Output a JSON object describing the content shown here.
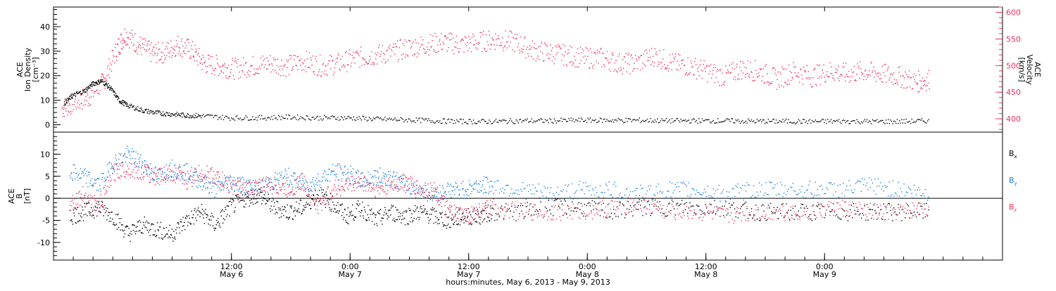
{
  "chart_data": [
    {
      "type": "scatter",
      "panel": "density-velocity",
      "left_axis_label": [
        "ACE",
        "Ion Density",
        "[cm⁻³]"
      ],
      "right_axis_label": [
        "ACE",
        "Velocity",
        "[km/s]"
      ],
      "ylim_left": [
        -3,
        48
      ],
      "yticks_left": [
        "0",
        "10",
        "20",
        "30",
        "40"
      ],
      "ylim_right": [
        375,
        610
      ],
      "yticks_right": [
        "400",
        "450",
        "500",
        "550",
        "600"
      ],
      "colors": {
        "density": "#000000",
        "velocity": "#e8325a"
      },
      "series": [
        {
          "axis": "left",
          "color": "#000000",
          "values": [
            [
              0.3,
              9
            ],
            [
              0.6,
              12
            ],
            [
              1.0,
              14
            ],
            [
              1.3,
              17
            ],
            [
              1.6,
              18
            ],
            [
              1.9,
              15
            ],
            [
              2.2,
              10
            ],
            [
              2.5,
              8
            ],
            [
              3.0,
              6
            ],
            [
              3.5,
              5
            ],
            [
              4.0,
              4.5
            ],
            [
              4.5,
              4
            ],
            [
              5.0,
              3.8
            ],
            [
              6.0,
              3
            ],
            [
              7.0,
              3
            ],
            [
              8.0,
              3.3
            ],
            [
              9.0,
              3
            ],
            [
              10.0,
              3
            ],
            [
              11.0,
              2.5
            ],
            [
              12.0,
              2.2
            ],
            [
              13.0,
              1.8
            ],
            [
              14.0,
              1.5
            ],
            [
              15.0,
              1.5
            ],
            [
              16.0,
              1.8
            ],
            [
              17.0,
              1.8
            ],
            [
              18.0,
              2.0
            ],
            [
              19.0,
              2.0
            ],
            [
              20.0,
              2.0
            ],
            [
              21.0,
              1.8
            ],
            [
              22.0,
              1.8
            ],
            [
              23.0,
              1.8
            ],
            [
              24.0,
              1.6
            ],
            [
              25.0,
              1.6
            ],
            [
              26.0,
              1.5
            ],
            [
              27.0,
              1.6
            ],
            [
              28.0,
              1.5
            ],
            [
              29.0,
              1.5
            ],
            [
              30.0,
              1.8
            ]
          ]
        },
        {
          "axis": "right",
          "color": "#e8325a",
          "values": [
            [
              0.3,
              420
            ],
            [
              0.8,
              430
            ],
            [
              1.5,
              440
            ],
            [
              2.2,
              470
            ],
            [
              2.8,
              530
            ],
            [
              3.2,
              560
            ],
            [
              3.8,
              540
            ],
            [
              4.4,
              525
            ],
            [
              5.0,
              525
            ],
            [
              5.6,
              540
            ],
            [
              6.2,
              530
            ],
            [
              6.8,
              505
            ],
            [
              7.5,
              500
            ],
            [
              8.2,
              495
            ],
            [
              9.0,
              500
            ],
            [
              9.8,
              505
            ],
            [
              10.6,
              500
            ],
            [
              11.4,
              510
            ],
            [
              12.2,
              500
            ],
            [
              13.0,
              505
            ],
            [
              13.8,
              515
            ],
            [
              14.6,
              520
            ],
            [
              15.4,
              525
            ],
            [
              16.2,
              535
            ],
            [
              17.0,
              540
            ],
            [
              17.8,
              545
            ],
            [
              18.6,
              540
            ],
            [
              19.4,
              545
            ],
            [
              20.2,
              550
            ],
            [
              21.0,
              545
            ],
            [
              21.8,
              530
            ],
            [
              22.6,
              525
            ],
            [
              23.4,
              520
            ],
            [
              24.2,
              515
            ],
            [
              25.0,
              515
            ],
            [
              25.8,
              505
            ],
            [
              26.6,
              505
            ],
            [
              27.4,
              520
            ],
            [
              28.2,
              505
            ],
            [
              29.0,
              500
            ],
            [
              29.8,
              490
            ],
            [
              30.6,
              480
            ],
            [
              31.4,
              495
            ],
            [
              32.2,
              490
            ],
            [
              33.0,
              475
            ],
            [
              33.8,
              490
            ],
            [
              34.6,
              480
            ],
            [
              35.4,
              490
            ],
            [
              36.2,
              485
            ],
            [
              37.0,
              490
            ],
            [
              37.8,
              485
            ],
            [
              38.6,
              480
            ],
            [
              39.4,
              470
            ],
            [
              40.0,
              475
            ]
          ]
        }
      ]
    },
    {
      "type": "scatter",
      "panel": "magnetic-field",
      "ylabel": [
        "ACE",
        "B",
        "[nT]"
      ],
      "ylim": [
        -14,
        15
      ],
      "yticks": [
        "-10",
        "-5",
        "0",
        "5",
        "10"
      ],
      "zero_line": true,
      "legend_placement": "right",
      "series": [
        {
          "name": "B",
          "subscript": "x",
          "color": "#000000",
          "values": [
            [
              0.5,
              -4
            ],
            [
              1.0,
              -3
            ],
            [
              1.5,
              -2
            ],
            [
              2.0,
              -4
            ],
            [
              2.5,
              -8
            ],
            [
              3.0,
              -6
            ],
            [
              3.5,
              -7
            ],
            [
              4.0,
              -8
            ],
            [
              4.5,
              -5
            ],
            [
              5.0,
              -3
            ],
            [
              5.5,
              -6
            ],
            [
              6.0,
              -2
            ],
            [
              6.5,
              0
            ],
            [
              7.0,
              1
            ],
            [
              7.5,
              -2
            ],
            [
              8.0,
              -3
            ],
            [
              8.5,
              -2
            ],
            [
              9.0,
              1
            ],
            [
              9.5,
              -1
            ],
            [
              10.0,
              -4
            ],
            [
              10.5,
              -2
            ],
            [
              11.0,
              -5
            ],
            [
              11.5,
              -3
            ],
            [
              12.0,
              -4
            ],
            [
              12.5,
              -3
            ],
            [
              13.0,
              -4
            ],
            [
              13.5,
              -5
            ],
            [
              14.0,
              -4
            ],
            [
              14.5,
              -4
            ],
            [
              15.0,
              -3
            ],
            [
              16.0,
              -3
            ],
            [
              17.0,
              -2
            ],
            [
              18.0,
              -2
            ],
            [
              19.0,
              -3
            ],
            [
              20.0,
              -2
            ],
            [
              21.0,
              -2
            ],
            [
              22.0,
              -2
            ],
            [
              23.0,
              -2
            ],
            [
              24.0,
              -3
            ],
            [
              25.0,
              -3
            ],
            [
              26.0,
              -3
            ],
            [
              27.0,
              -3
            ],
            [
              28.0,
              -3
            ],
            [
              29.0,
              -3
            ],
            [
              30.0,
              -3
            ]
          ]
        },
        {
          "name": "B",
          "subscript": "y",
          "color": "#1a7fe0",
          "values": [
            [
              0.5,
              6
            ],
            [
              1.0,
              5
            ],
            [
              1.5,
              3
            ],
            [
              2.0,
              8
            ],
            [
              2.5,
              10
            ],
            [
              3.0,
              8
            ],
            [
              3.5,
              5
            ],
            [
              4.0,
              7
            ],
            [
              4.5,
              6
            ],
            [
              5.0,
              4
            ],
            [
              5.5,
              2
            ],
            [
              6.0,
              4
            ],
            [
              6.5,
              3
            ],
            [
              7.0,
              2
            ],
            [
              7.5,
              4
            ],
            [
              8.0,
              5
            ],
            [
              8.5,
              3
            ],
            [
              9.0,
              4
            ],
            [
              9.5,
              6
            ],
            [
              10.0,
              6
            ],
            [
              10.5,
              4
            ],
            [
              11.0,
              5
            ],
            [
              11.5,
              5
            ],
            [
              12.0,
              3
            ],
            [
              12.5,
              2
            ],
            [
              13.0,
              1
            ],
            [
              13.5,
              2
            ],
            [
              14.0,
              2
            ],
            [
              14.5,
              3
            ],
            [
              15.0,
              3
            ],
            [
              16.0,
              2
            ],
            [
              17.0,
              1
            ],
            [
              18.0,
              2
            ],
            [
              19.0,
              2
            ],
            [
              20.0,
              1
            ],
            [
              21.0,
              2
            ],
            [
              22.0,
              2
            ],
            [
              23.0,
              1
            ],
            [
              24.0,
              2
            ],
            [
              25.0,
              2
            ],
            [
              26.0,
              2
            ],
            [
              27.0,
              2
            ],
            [
              28.0,
              3
            ],
            [
              29.0,
              2
            ],
            [
              30.0,
              1
            ]
          ]
        },
        {
          "name": "B",
          "subscript": "z",
          "color": "#e8325a",
          "values": [
            [
              0.5,
              -1
            ],
            [
              1.0,
              1
            ],
            [
              1.5,
              -2
            ],
            [
              2.0,
              6
            ],
            [
              2.5,
              7
            ],
            [
              3.0,
              6
            ],
            [
              3.5,
              5
            ],
            [
              4.0,
              6
            ],
            [
              4.5,
              4
            ],
            [
              5.0,
              6
            ],
            [
              5.5,
              5
            ],
            [
              6.0,
              3
            ],
            [
              6.5,
              2
            ],
            [
              7.0,
              3
            ],
            [
              7.5,
              3
            ],
            [
              8.0,
              2
            ],
            [
              8.5,
              4
            ],
            [
              9.0,
              -2
            ],
            [
              9.5,
              2
            ],
            [
              10.0,
              3
            ],
            [
              10.5,
              4
            ],
            [
              11.0,
              2
            ],
            [
              11.5,
              3
            ],
            [
              12.0,
              4
            ],
            [
              12.5,
              2
            ],
            [
              13.0,
              2
            ],
            [
              13.5,
              -3
            ],
            [
              14.0,
              -4
            ],
            [
              14.5,
              -3
            ],
            [
              15.0,
              -2
            ],
            [
              16.0,
              -3
            ],
            [
              17.0,
              -3
            ],
            [
              18.0,
              -3
            ],
            [
              19.0,
              -2
            ],
            [
              20.0,
              -1
            ],
            [
              21.0,
              -3
            ],
            [
              22.0,
              -3
            ],
            [
              23.0,
              -4
            ],
            [
              24.0,
              -3
            ],
            [
              25.0,
              -3
            ],
            [
              26.0,
              -3
            ],
            [
              27.0,
              -2
            ],
            [
              28.0,
              -3
            ],
            [
              29.0,
              -3
            ],
            [
              30.0,
              -2
            ]
          ]
        }
      ]
    }
  ],
  "time_axis": {
    "ticks": [
      {
        "time": "12:00",
        "date": "May 6"
      },
      {
        "time": "0:00",
        "date": "May 7"
      },
      {
        "time": "12:00",
        "date": "May 7"
      },
      {
        "time": "0:00",
        "date": "May 8"
      },
      {
        "time": "12:00",
        "date": "May 8"
      },
      {
        "time": "0:00",
        "date": "May 9"
      }
    ],
    "title": "hours:minutes, May  6, 2013 - May  9, 2013"
  }
}
